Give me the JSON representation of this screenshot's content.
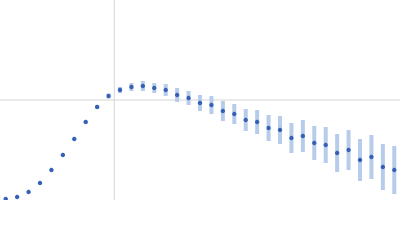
{
  "chart_data": {
    "type": "scatter",
    "x": [
      0.05,
      0.15,
      0.25,
      0.35,
      0.45,
      0.55,
      0.65,
      0.75,
      0.85,
      0.95,
      1.05,
      1.15,
      1.25,
      1.35,
      1.45,
      1.55,
      1.65,
      1.75,
      1.85,
      1.95,
      2.05,
      2.15,
      2.25,
      2.35,
      2.45,
      2.55,
      2.65,
      2.75,
      2.85,
      2.95,
      3.05,
      3.15,
      3.25,
      3.35,
      3.45
    ],
    "values": [
      0.01,
      0.03,
      0.08,
      0.17,
      0.3,
      0.45,
      0.61,
      0.78,
      0.93,
      1.04,
      1.1,
      1.13,
      1.14,
      1.12,
      1.1,
      1.05,
      1.02,
      0.97,
      0.95,
      0.89,
      0.86,
      0.8,
      0.78,
      0.72,
      0.7,
      0.62,
      0.64,
      0.57,
      0.55,
      0.47,
      0.5,
      0.4,
      0.43,
      0.33,
      0.3
    ],
    "errors": [
      0.005,
      0.005,
      0.006,
      0.008,
      0.01,
      0.012,
      0.014,
      0.016,
      0.02,
      0.025,
      0.03,
      0.04,
      0.05,
      0.05,
      0.06,
      0.07,
      0.07,
      0.08,
      0.09,
      0.1,
      0.1,
      0.11,
      0.12,
      0.13,
      0.14,
      0.15,
      0.16,
      0.17,
      0.18,
      0.19,
      0.2,
      0.21,
      0.22,
      0.23,
      0.24
    ],
    "color": "#3461b5",
    "error_color": "#b7cbea",
    "xlim": [
      0,
      3.5
    ],
    "ylim": [
      0,
      2
    ],
    "xticks": [
      1
    ],
    "yticks": [
      1
    ],
    "grid": true
  }
}
